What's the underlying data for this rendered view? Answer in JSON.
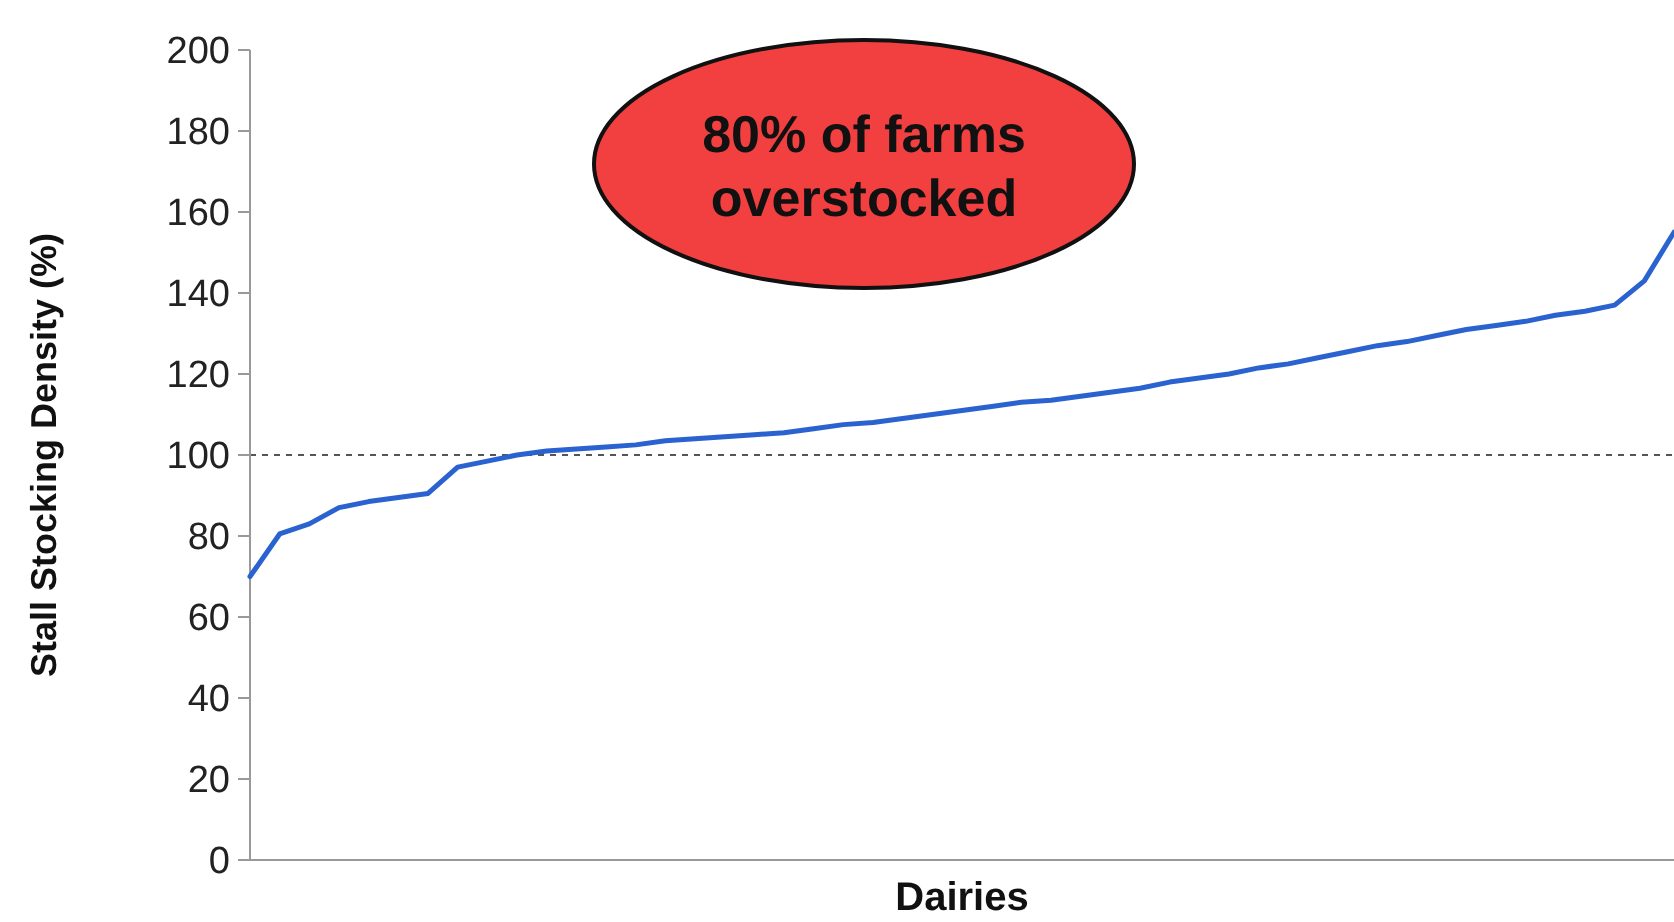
{
  "chart_data": {
    "type": "line",
    "xlabel": "Dairies",
    "ylabel": "Stall Stocking Density (%)",
    "categories": [
      null,
      null,
      null,
      null,
      null,
      null,
      null,
      null,
      null,
      null,
      null,
      null,
      null,
      null,
      null,
      null,
      null,
      null,
      null,
      null,
      null,
      null,
      null,
      null,
      null,
      null,
      null,
      null,
      null,
      null,
      null,
      null,
      null,
      null,
      null,
      null,
      null,
      null,
      null,
      null,
      null,
      null,
      null,
      null,
      null,
      null,
      null,
      null,
      null
    ],
    "series": [
      {
        "color": "#2a62d0",
        "values": [
          70,
          80.5,
          83,
          87,
          88.5,
          89.5,
          90.5,
          97,
          98.5,
          100,
          101,
          101.5,
          102,
          102.5,
          103.5,
          104,
          104.5,
          105,
          105.5,
          106.5,
          107.5,
          108,
          109,
          110,
          111,
          112,
          113,
          113.5,
          114.5,
          115.5,
          116.5,
          118,
          119,
          120,
          121.5,
          122.5,
          124,
          125.5,
          127,
          128,
          129.5,
          131,
          132,
          133,
          134.5,
          135.5,
          137,
          143,
          155
        ]
      }
    ],
    "ylim": [
      0,
      200
    ],
    "yticks": [
      0,
      20,
      40,
      60,
      80,
      100,
      120,
      140,
      160,
      180,
      200
    ],
    "grid": false,
    "marker": "none",
    "line_style": "solid",
    "tick_labels": "y",
    "ref_lines": [
      {
        "axis": "y",
        "value": 100,
        "color": "#555555",
        "line_style": "dashed"
      }
    ],
    "annotations": [
      "80% of farms\noverstocked"
    ]
  }
}
